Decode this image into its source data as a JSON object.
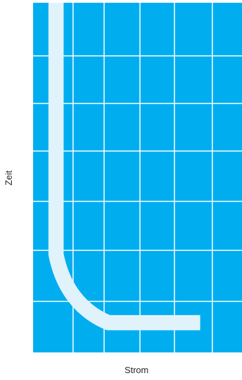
{
  "chart_data": {
    "type": "area",
    "title": "",
    "xlabel": "Strom",
    "ylabel": "Zeit",
    "grid": true,
    "legend": "none",
    "series": [
      {
        "name": "",
        "band_centerline": [
          {
            "x": 0.11,
            "y": 1.0
          },
          {
            "x": 0.11,
            "y": 0.28
          },
          {
            "x": 0.14,
            "y": 0.19
          },
          {
            "x": 0.22,
            "y": 0.12
          },
          {
            "x": 0.36,
            "y": 0.085
          },
          {
            "x": 0.8,
            "y": 0.085
          }
        ]
      }
    ],
    "xlim": [
      0,
      1
    ],
    "ylim": [
      0,
      1
    ],
    "grid_columns": 6,
    "grid_rows": 7
  },
  "colors": {
    "background": "#00aeef",
    "grid": "#ffffff",
    "band": "#e0f3fb"
  }
}
